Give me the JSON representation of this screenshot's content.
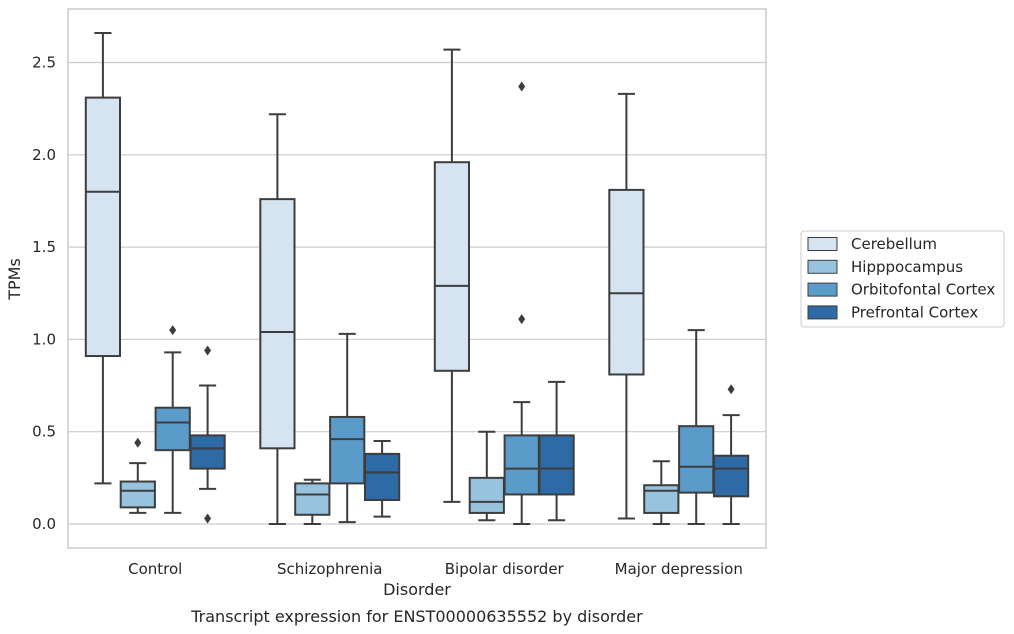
{
  "chart_data": {
    "type": "box",
    "caption": "Transcript expression for ENST00000635552 by disorder",
    "xlabel": "Disorder",
    "ylabel": "TPMs",
    "ylim": [
      -0.13,
      2.79
    ],
    "yticks": [
      0.0,
      0.5,
      1.0,
      1.5,
      2.0,
      2.5
    ],
    "ytick_labels": [
      "0.0",
      "0.5",
      "1.0",
      "1.5",
      "2.0",
      "2.5"
    ],
    "grid": "horizontal",
    "legend_position": "outside-right",
    "categories": [
      "Control",
      "Schizophrenia",
      "Bipolar disorder",
      "Major depression"
    ],
    "series": [
      {
        "name": "Cerebellum",
        "color": "#d6e3f1",
        "boxes": [
          {
            "whisker_low": 0.22,
            "q1": 0.91,
            "median": 1.8,
            "q3": 2.31,
            "whisker_high": 2.66,
            "outliers": []
          },
          {
            "whisker_low": 0.0,
            "q1": 0.41,
            "median": 1.04,
            "q3": 1.76,
            "whisker_high": 2.22,
            "outliers": []
          },
          {
            "whisker_low": 0.12,
            "q1": 0.83,
            "median": 1.29,
            "q3": 1.96,
            "whisker_high": 2.57,
            "outliers": []
          },
          {
            "whisker_low": 0.03,
            "q1": 0.81,
            "median": 1.25,
            "q3": 1.81,
            "whisker_high": 2.33,
            "outliers": []
          }
        ]
      },
      {
        "name": "Hipppocampus",
        "color": "#98c3df",
        "boxes": [
          {
            "whisker_low": 0.06,
            "q1": 0.09,
            "median": 0.18,
            "q3": 0.23,
            "whisker_high": 0.33,
            "outliers": [
              0.44
            ]
          },
          {
            "whisker_low": 0.0,
            "q1": 0.05,
            "median": 0.16,
            "q3": 0.22,
            "whisker_high": 0.24,
            "outliers": []
          },
          {
            "whisker_low": 0.02,
            "q1": 0.06,
            "median": 0.12,
            "q3": 0.25,
            "whisker_high": 0.5,
            "outliers": []
          },
          {
            "whisker_low": 0.0,
            "q1": 0.06,
            "median": 0.18,
            "q3": 0.21,
            "whisker_high": 0.34,
            "outliers": []
          }
        ]
      },
      {
        "name": "Orbitofontal Cortex",
        "color": "#5a9bc9",
        "boxes": [
          {
            "whisker_low": 0.06,
            "q1": 0.4,
            "median": 0.55,
            "q3": 0.63,
            "whisker_high": 0.93,
            "outliers": [
              1.05
            ]
          },
          {
            "whisker_low": 0.01,
            "q1": 0.22,
            "median": 0.46,
            "q3": 0.58,
            "whisker_high": 1.03,
            "outliers": []
          },
          {
            "whisker_low": 0.0,
            "q1": 0.16,
            "median": 0.3,
            "q3": 0.48,
            "whisker_high": 0.66,
            "outliers": [
              1.11,
              2.37
            ]
          },
          {
            "whisker_low": 0.0,
            "q1": 0.17,
            "median": 0.31,
            "q3": 0.53,
            "whisker_high": 1.05,
            "outliers": []
          }
        ]
      },
      {
        "name": "Prefrontal Cortex",
        "color": "#2d6aa6",
        "boxes": [
          {
            "whisker_low": 0.19,
            "q1": 0.3,
            "median": 0.41,
            "q3": 0.48,
            "whisker_high": 0.75,
            "outliers": [
              0.03,
              0.94
            ]
          },
          {
            "whisker_low": 0.04,
            "q1": 0.13,
            "median": 0.28,
            "q3": 0.38,
            "whisker_high": 0.45,
            "outliers": []
          },
          {
            "whisker_low": 0.02,
            "q1": 0.16,
            "median": 0.3,
            "q3": 0.48,
            "whisker_high": 0.77,
            "outliers": []
          },
          {
            "whisker_low": 0.0,
            "q1": 0.15,
            "median": 0.3,
            "q3": 0.37,
            "whisker_high": 0.59,
            "outliers": [
              0.73
            ]
          }
        ]
      }
    ]
  }
}
